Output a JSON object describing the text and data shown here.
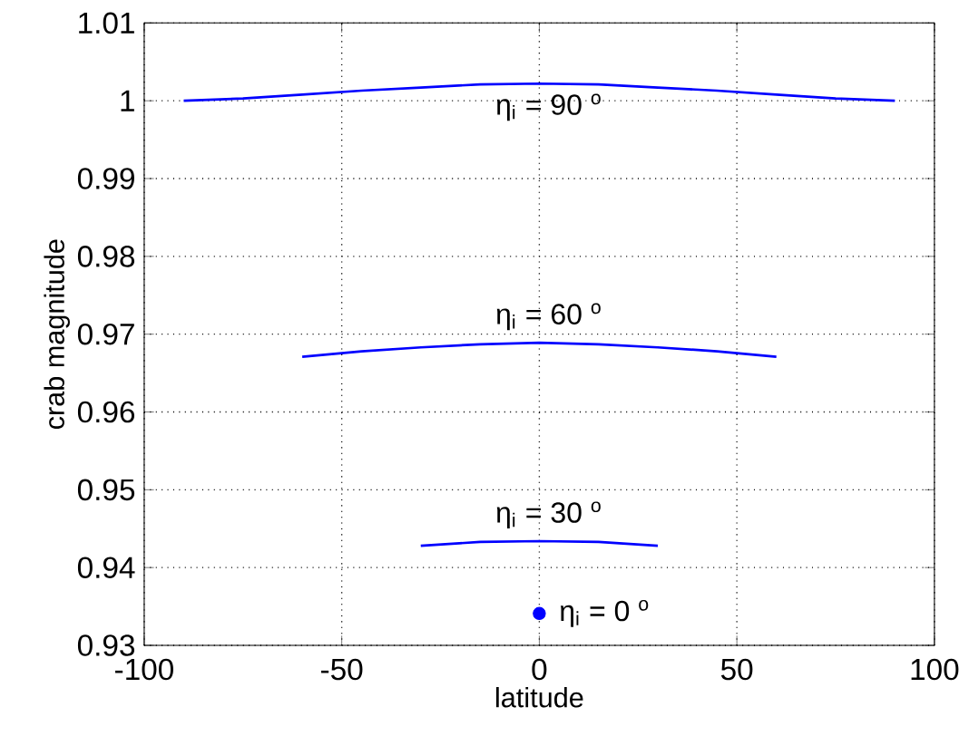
{
  "chart_data": {
    "type": "line",
    "xlabel": "latitude",
    "ylabel": "crab magnitude",
    "xlim": [
      -100,
      100
    ],
    "ylim": [
      0.93,
      1.01
    ],
    "xticks": [
      -100,
      -50,
      0,
      50,
      100
    ],
    "yticks": [
      0.93,
      0.94,
      0.95,
      0.96,
      0.97,
      0.98,
      0.99,
      1,
      1.01
    ],
    "grid": true,
    "series": [
      {
        "name": "η$_{i}$ = 90 $^{o}$",
        "color": "#0000ff",
        "x": [
          -90,
          -75,
          -60,
          -45,
          -30,
          -15,
          0,
          15,
          30,
          45,
          60,
          75,
          90
        ],
        "values": [
          1.0,
          1.0003,
          1.0008,
          1.0013,
          1.0017,
          1.0021,
          1.0022,
          1.0021,
          1.0017,
          1.0013,
          1.0008,
          1.0003,
          1.0
        ]
      },
      {
        "name": "η$_{i}$ = 60 $^{o}$",
        "color": "#0000ff",
        "x": [
          -60,
          -45,
          -30,
          -15,
          0,
          15,
          30,
          45,
          60
        ],
        "values": [
          0.9671,
          0.9678,
          0.9683,
          0.9687,
          0.9689,
          0.9687,
          0.9683,
          0.9678,
          0.9671
        ]
      },
      {
        "name": "η$_{i}$ = 30 $^{o}$",
        "color": "#0000ff",
        "x": [
          -30,
          -15,
          0,
          15,
          30
        ],
        "values": [
          0.9428,
          0.9433,
          0.9434,
          0.9433,
          0.9428
        ]
      },
      {
        "name": "η$_{i}$ = 0 $^{o}$",
        "type": "scatter",
        "marker": "circle",
        "color": "#0000ff",
        "x": [
          0
        ],
        "values": [
          0.9341
        ]
      }
    ]
  }
}
